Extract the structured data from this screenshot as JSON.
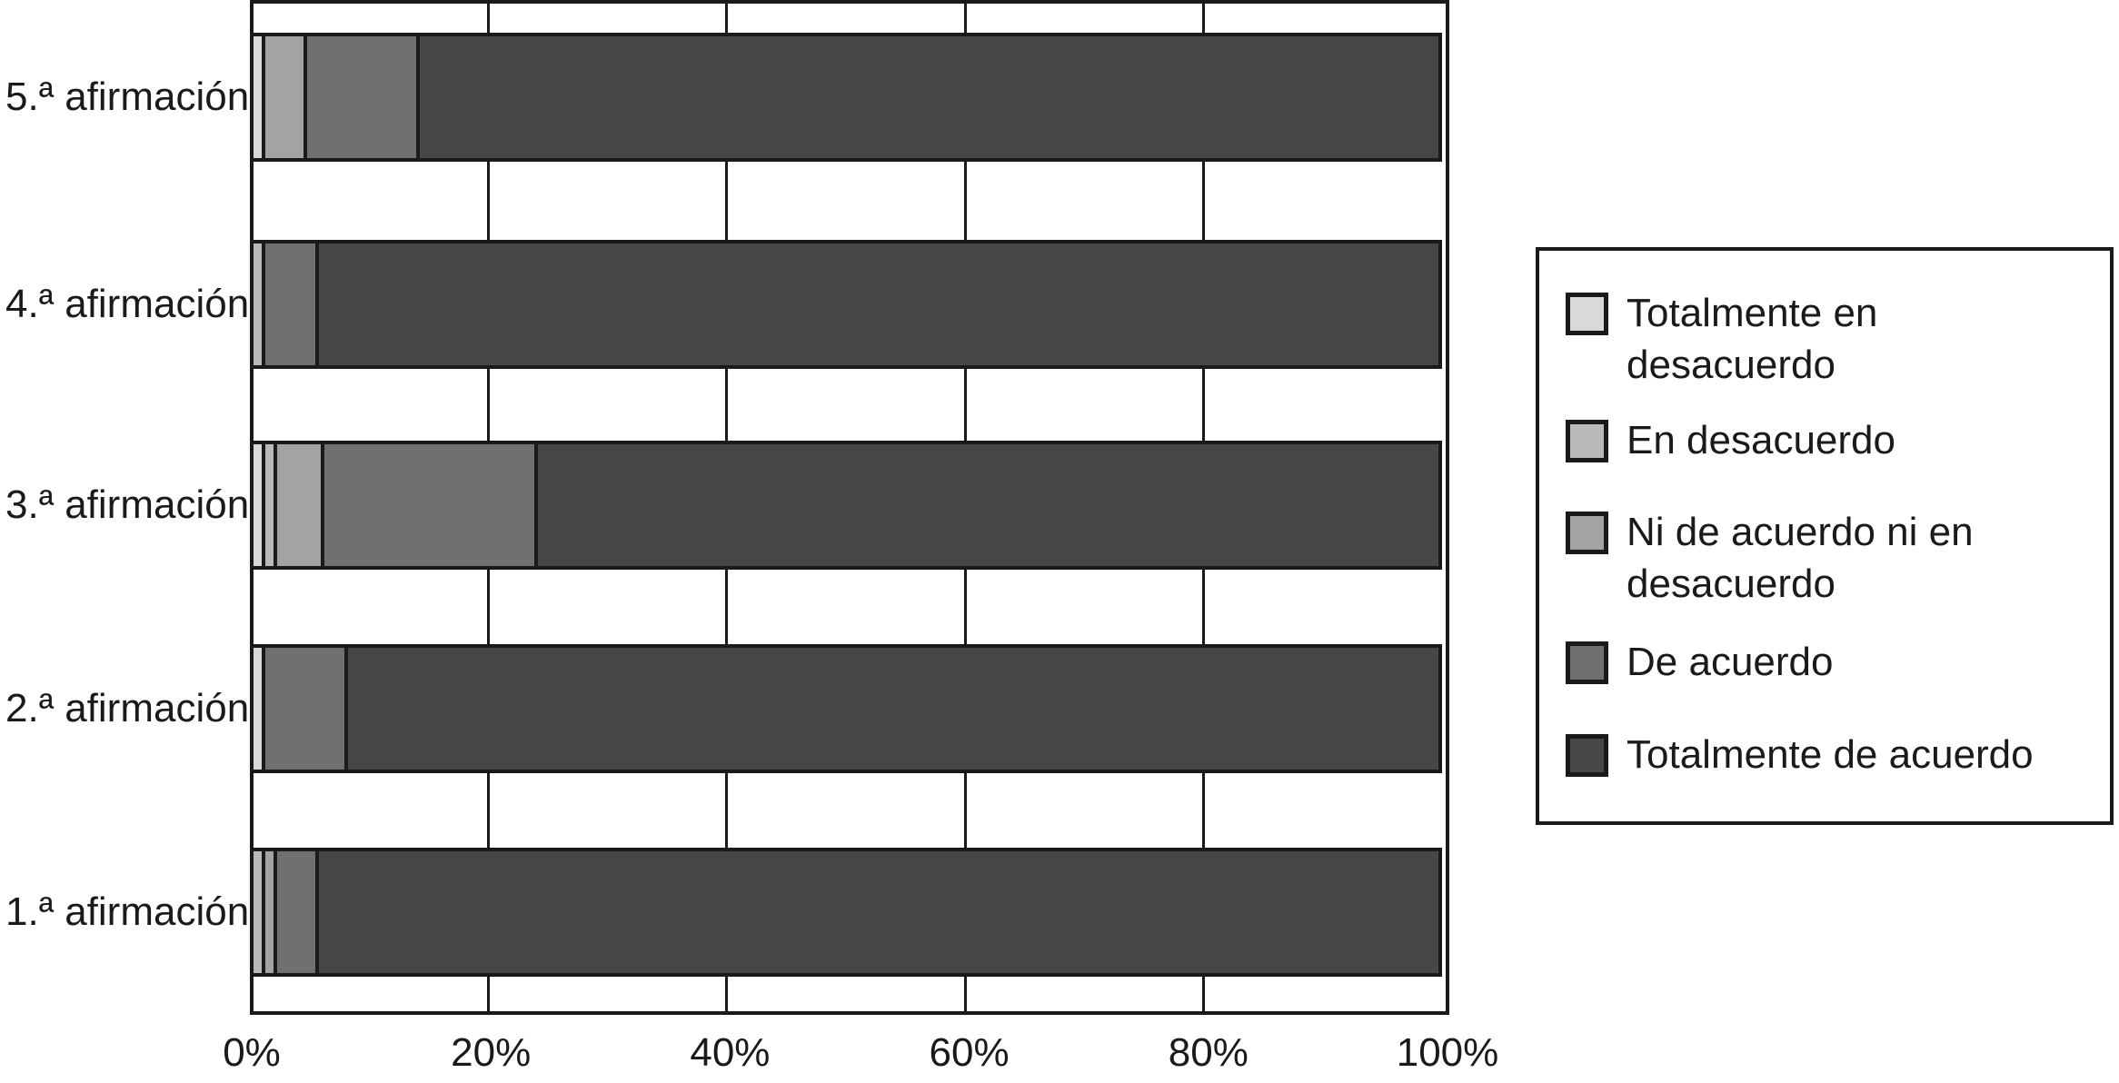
{
  "chart_data": {
    "type": "bar",
    "subtype": "stacked_horizontal",
    "title": "",
    "xlabel": "",
    "ylabel": "",
    "categories": [
      "5.ª afirmación",
      "4.ª afirmación",
      "3.ª afirmación",
      "2.ª afirmación",
      "1.ª afirmación"
    ],
    "series": [
      {
        "name": "Totalmente en desacuerdo",
        "color": "#d9d9d9",
        "values": [
          1,
          0,
          1,
          1,
          0
        ]
      },
      {
        "name": "En desacuerdo",
        "color": "#b9b9b9",
        "values": [
          0,
          1,
          1,
          0,
          1
        ]
      },
      {
        "name": "Ni de acuerdo ni en desacuerdo",
        "color": "#a3a3a3",
        "values": [
          3.5,
          0,
          4,
          0,
          1
        ]
      },
      {
        "name": "De acuerdo",
        "color": "#707070",
        "values": [
          9.5,
          4.5,
          18,
          7,
          3.5
        ]
      },
      {
        "name": "Totalmente de acuerdo",
        "color": "#474747",
        "values": [
          86,
          94.5,
          76,
          92,
          94.5
        ]
      }
    ],
    "x_axis": {
      "tick_labels": [
        "0%",
        "20%",
        "40%",
        "60%",
        "80%",
        "100%"
      ],
      "range": [
        0,
        100
      ],
      "grid_interval_pct": 20,
      "grid": true
    },
    "legend": {
      "position": "right",
      "items": [
        {
          "label": "Totalmente en\ndesacuerdo",
          "color": "#d9d9d9"
        },
        {
          "label": "En desacuerdo",
          "color": "#b9b9b9"
        },
        {
          "label": "Ni de acuerdo ni en\ndesacuerdo",
          "color": "#a3a3a3"
        },
        {
          "label": "De acuerdo",
          "color": "#707070"
        },
        {
          "label": "Totalmente de acuerdo",
          "color": "#474747"
        }
      ]
    },
    "style": {
      "outline_color": "#1a1a1a",
      "background": "#ffffff",
      "text_color": "#1a1a1a"
    }
  }
}
